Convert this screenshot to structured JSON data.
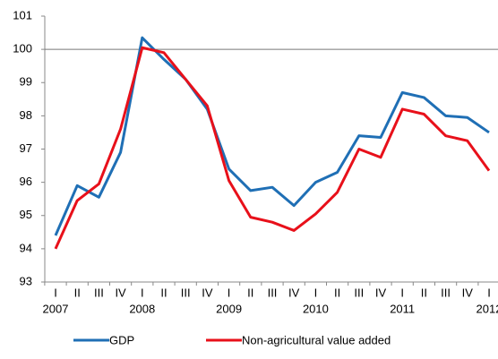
{
  "chart_data": {
    "type": "line",
    "categories": [
      "I",
      "II",
      "III",
      "IV",
      "I",
      "II",
      "III",
      "IV",
      "I",
      "II",
      "III",
      "IV",
      "I",
      "II",
      "III",
      "IV",
      "I",
      "II",
      "III",
      "IV",
      "I"
    ],
    "years": [
      "2007",
      "2008",
      "2009",
      "2010",
      "2011",
      "2012"
    ],
    "series": [
      {
        "name": "GDP",
        "color": "#1f6fb5",
        "values": [
          94.4,
          95.9,
          95.55,
          96.9,
          100.35,
          99.7,
          99.1,
          98.2,
          96.4,
          95.75,
          95.85,
          95.3,
          96.0,
          96.3,
          97.4,
          97.35,
          98.7,
          98.55,
          98.0,
          97.95,
          97.5
        ]
      },
      {
        "name": "Non-agricultural value added",
        "color": "#e8101a",
        "values": [
          94.0,
          95.45,
          95.95,
          97.6,
          100.05,
          99.9,
          99.1,
          98.3,
          96.05,
          94.95,
          94.8,
          94.55,
          95.05,
          95.7,
          97.0,
          96.75,
          98.2,
          98.05,
          97.4,
          97.25,
          96.35
        ]
      }
    ],
    "ylim": [
      93,
      101
    ],
    "yticks": [
      93,
      94,
      95,
      96,
      97,
      98,
      99,
      100,
      101
    ],
    "reference_line": 100,
    "legend": "bottom"
  }
}
